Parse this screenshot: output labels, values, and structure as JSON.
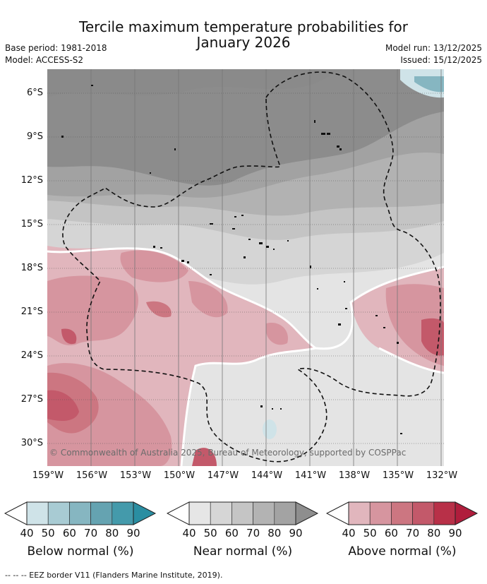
{
  "title_line1": "Tercile maximum temperature probabilities for",
  "title_line2": "January 2026",
  "meta": {
    "base_period": "Base period: 1981-2018",
    "model": "Model: ACCESS-S2",
    "model_run": "Model run: 13/12/2025",
    "issued": "Issued: 15/12/2025"
  },
  "lat_labels": [
    "6°S",
    "9°S",
    "12°S",
    "15°S",
    "18°S",
    "21°S",
    "24°S",
    "27°S",
    "30°S"
  ],
  "lon_labels": [
    "159°W",
    "156°W",
    "153°W",
    "150°W",
    "147°W",
    "144°W",
    "141°W",
    "138°W",
    "135°W",
    "132°W"
  ],
  "copyright": "© Commonwealth of Australia 2025, Bureau of Meteorology, supported by COSPPac",
  "colorbars": [
    {
      "label": "Below normal (%)",
      "ticks": [
        "40",
        "50",
        "60",
        "70",
        "80",
        "90"
      ],
      "colors": [
        "#cfe3e8",
        "#a8cbd3",
        "#86b6c1",
        "#65a3b1",
        "#449aab",
        "#2a8ea2"
      ]
    },
    {
      "label": "Near normal (%)",
      "ticks": [
        "40",
        "50",
        "60",
        "70",
        "80",
        "90"
      ],
      "colors": [
        "#e6e6e6",
        "#d6d6d6",
        "#c5c5c5",
        "#b3b3b3",
        "#a3a3a3",
        "#8e8e8e"
      ]
    },
    {
      "label": "Above normal (%)",
      "ticks": [
        "40",
        "50",
        "60",
        "70",
        "80",
        "90"
      ],
      "colors": [
        "#e1b6bd",
        "#d6959f",
        "#cc7681",
        "#c3596a",
        "#b83048",
        "#b01d3c"
      ]
    }
  ],
  "footer": "--  --  -- EEZ border V11 (Flanders Marine Institute, 2019)."
}
